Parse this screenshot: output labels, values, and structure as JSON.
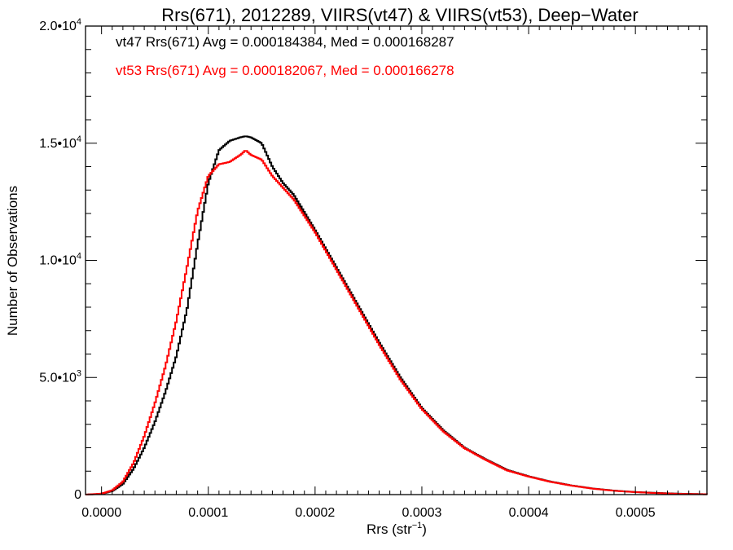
{
  "chart_data": {
    "type": "line",
    "style": "step-histogram",
    "title": "Rrs(671), 2012289, VIIRS(vt47) & VIIRS(vt53), Deep−Water",
    "xlabel_main": "Rrs (str",
    "xlabel_exp": "−1",
    "xlabel_close": ")",
    "ylabel": "Number of Observations",
    "xlim": [
      -1.5e-05,
      0.000567
    ],
    "ylim": [
      0,
      20000
    ],
    "grid": false,
    "legend_placement": "top-left",
    "x_ticks": [
      {
        "value": 0.0,
        "label": "0.0000"
      },
      {
        "value": 0.0001,
        "label": "0.0001"
      },
      {
        "value": 0.0002,
        "label": "0.0002"
      },
      {
        "value": 0.0003,
        "label": "0.0003"
      },
      {
        "value": 0.0004,
        "label": "0.0004"
      },
      {
        "value": 0.0005,
        "label": "0.0005"
      }
    ],
    "y_ticks": [
      {
        "value": 0,
        "mant": "0",
        "exp": ""
      },
      {
        "value": 5000,
        "mant": "5.0•10",
        "exp": "3"
      },
      {
        "value": 10000,
        "mant": "1.0•10",
        "exp": "4"
      },
      {
        "value": 15000,
        "mant": "1.5•10",
        "exp": "4"
      },
      {
        "value": 20000,
        "mant": "2.0•10",
        "exp": "4"
      }
    ],
    "series": [
      {
        "name": "vt47",
        "label": "vt47 Rrs(671) Avg = 0.000184384, Med = 0.000168287",
        "color": "#000000",
        "x": [
          -1.5e-05,
          0.0,
          1e-05,
          2e-05,
          3e-05,
          4e-05,
          5e-05,
          6e-05,
          7e-05,
          8e-05,
          9e-05,
          0.0001,
          0.00011,
          0.00012,
          0.00013,
          0.000135,
          0.00014,
          0.00015,
          0.00016,
          0.00017,
          0.00018,
          0.0002,
          0.00022,
          0.00024,
          0.00026,
          0.00028,
          0.0003,
          0.00032,
          0.00034,
          0.00036,
          0.00038,
          0.0004,
          0.00042,
          0.00044,
          0.00046,
          0.00048,
          0.0005,
          0.00052,
          0.00054,
          0.000567
        ],
        "y": [
          0,
          30,
          150,
          450,
          1100,
          2000,
          3100,
          4400,
          5900,
          7900,
          10700,
          13300,
          14700,
          15100,
          15250,
          15300,
          15250,
          15000,
          14000,
          13300,
          12800,
          11300,
          9700,
          8100,
          6500,
          5000,
          3700,
          2750,
          2000,
          1500,
          1050,
          780,
          560,
          390,
          260,
          170,
          110,
          70,
          40,
          15
        ]
      },
      {
        "name": "vt53",
        "label": "vt53 Rrs(671) Avg = 0.000182067, Med = 0.000166278",
        "color": "#ff0000",
        "x": [
          -1.5e-05,
          0.0,
          1e-05,
          2e-05,
          3e-05,
          4e-05,
          5e-05,
          6e-05,
          7e-05,
          8e-05,
          9e-05,
          0.0001,
          0.00011,
          0.00012,
          0.00013,
          0.000135,
          0.00014,
          0.00015,
          0.00016,
          0.00017,
          0.00018,
          0.0002,
          0.00022,
          0.00024,
          0.00026,
          0.00028,
          0.0003,
          0.00032,
          0.00034,
          0.00036,
          0.00038,
          0.0004,
          0.00042,
          0.00044,
          0.00046,
          0.00048,
          0.0005,
          0.00052,
          0.00054,
          0.000567
        ],
        "y": [
          0,
          40,
          180,
          550,
          1350,
          2500,
          3900,
          5500,
          7400,
          9700,
          12100,
          13600,
          14100,
          14200,
          14500,
          14700,
          14500,
          14300,
          13600,
          13100,
          12600,
          11200,
          9600,
          8000,
          6400,
          4900,
          3650,
          2700,
          1980,
          1480,
          1030,
          770,
          550,
          385,
          255,
          165,
          105,
          65,
          35,
          12
        ]
      }
    ]
  }
}
